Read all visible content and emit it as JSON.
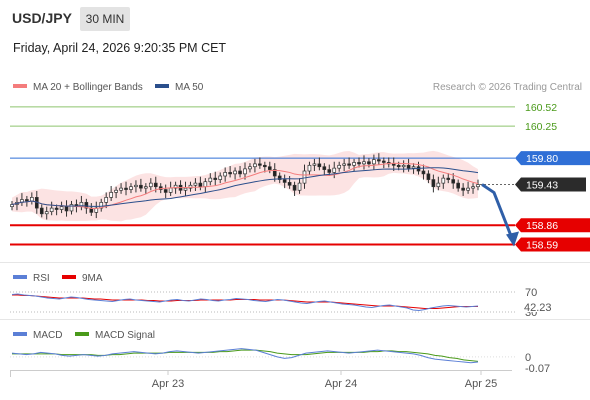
{
  "header": {
    "pair": "USD/JPY",
    "timeframe": "30 MIN",
    "datetime": "Friday, April 24, 2026 9:20:35 PM CET"
  },
  "chart_data": [
    {
      "type": "line",
      "panel": "price",
      "legend": [
        {
          "name": "MA 20 + Bollinger Bands",
          "color": "#f47c7c"
        },
        {
          "name": "MA 50",
          "color": "#2b4f8c"
        }
      ],
      "credit": "Research © 2026 Trading Central",
      "ylim": [
        158.4,
        160.7
      ],
      "x_ticks": [
        "Apr 23",
        "Apr 24",
        "Apr 25"
      ],
      "close": [
        159.15,
        159.18,
        159.22,
        159.2,
        159.25,
        159.1,
        159.02,
        159.05,
        159.1,
        159.08,
        159.12,
        159.06,
        159.15,
        159.12,
        159.18,
        159.1,
        159.04,
        159.1,
        159.18,
        159.25,
        159.32,
        159.35,
        159.38,
        159.36,
        159.4,
        159.42,
        159.38,
        159.4,
        159.45,
        159.4,
        159.36,
        159.32,
        159.38,
        159.42,
        159.35,
        159.38,
        159.42,
        159.45,
        159.4,
        159.47,
        159.52,
        159.5,
        159.55,
        159.6,
        159.58,
        159.62,
        159.58,
        159.65,
        159.68,
        159.72,
        159.7,
        159.68,
        159.64,
        159.55,
        159.5,
        159.46,
        159.42,
        159.35,
        159.45,
        159.62,
        159.7,
        159.72,
        159.68,
        159.64,
        159.6,
        159.66,
        159.7,
        159.72,
        159.7,
        159.74,
        159.72,
        159.75,
        159.72,
        159.78,
        159.76,
        159.74,
        159.72,
        159.7,
        159.68,
        159.7,
        159.66,
        159.68,
        159.62,
        159.58,
        159.5,
        159.4,
        159.45,
        159.52,
        159.5,
        159.45,
        159.38,
        159.35,
        159.38,
        159.4,
        159.43
      ],
      "ma20_label": "",
      "levels": [
        {
          "value": 160.52,
          "label": "160.52",
          "kind": "target",
          "color": "#8dc46d"
        },
        {
          "value": 160.25,
          "label": "160.25",
          "kind": "target",
          "color": "#8dc46d"
        },
        {
          "value": 159.8,
          "label": "159.80",
          "kind": "pivot",
          "color": "#2f6fd6"
        },
        {
          "value": 159.43,
          "label": "159.43",
          "kind": "last",
          "color": "#222222"
        },
        {
          "value": 158.86,
          "label": "158.86",
          "kind": "support",
          "color": "#e60000"
        },
        {
          "value": 158.59,
          "label": "158.59",
          "kind": "support",
          "color": "#e60000"
        }
      ],
      "forecast": {
        "from": 159.43,
        "to": 158.59,
        "color": "#2f5fa8"
      }
    },
    {
      "type": "line",
      "panel": "rsi",
      "legend": [
        {
          "name": "RSI",
          "color": "#5b7fd6"
        },
        {
          "name": "9MA",
          "color": "#e60000"
        }
      ],
      "ylim": [
        20,
        80
      ],
      "level_labels": [
        "70",
        "30"
      ],
      "last_label": "42.23",
      "rsi": [
        65,
        66,
        64,
        63,
        62,
        60,
        58,
        57,
        56,
        58,
        60,
        59,
        57,
        55,
        54,
        53,
        52,
        51,
        53,
        55,
        56,
        54,
        53,
        52,
        51,
        50,
        52,
        54,
        55,
        53,
        52,
        54,
        56,
        55,
        53,
        52,
        54,
        55,
        57,
        56,
        55,
        53,
        52,
        51,
        53,
        55,
        54,
        52,
        50,
        48,
        47,
        49,
        51,
        52,
        50,
        48,
        46,
        45,
        44,
        42,
        40,
        39,
        41,
        43,
        44,
        42,
        40,
        38,
        34,
        33,
        35,
        38,
        40,
        42,
        43,
        42,
        41,
        40,
        41,
        42
      ],
      "ma9": [
        64,
        64,
        63,
        63,
        62,
        61,
        60,
        59,
        58,
        58,
        58,
        58,
        58,
        57,
        56,
        56,
        55,
        54,
        54,
        54,
        54,
        54,
        54,
        53,
        53,
        52,
        52,
        52,
        53,
        53,
        53,
        53,
        54,
        54,
        54,
        54,
        54,
        54,
        55,
        55,
        55,
        55,
        54,
        54,
        54,
        54,
        54,
        53,
        52,
        51,
        50,
        50,
        50,
        50,
        50,
        49,
        48,
        47,
        46,
        45,
        44,
        43,
        42,
        42,
        42,
        42,
        41,
        40,
        39,
        38,
        37,
        37,
        37,
        38,
        39,
        40,
        41,
        41,
        41,
        41
      ]
    },
    {
      "type": "line",
      "panel": "macd",
      "legend": [
        {
          "name": "MACD",
          "color": "#5b7fd6"
        },
        {
          "name": "MACD Signal",
          "color": "#4a9a1a"
        }
      ],
      "ylim": [
        -0.15,
        0.2
      ],
      "level_labels": [
        "0"
      ],
      "last_label": "-0.07",
      "macd": [
        0.05,
        0.04,
        0.03,
        0.04,
        0.06,
        0.05,
        0.04,
        0.02,
        0.01,
        0.02,
        0.03,
        0.02,
        0.01,
        0.02,
        0.04,
        0.05,
        0.06,
        0.07,
        0.06,
        0.05,
        0.04,
        0.05,
        0.07,
        0.08,
        0.07,
        0.06,
        0.05,
        0.06,
        0.07,
        0.08,
        0.09,
        0.1,
        0.11,
        0.1,
        0.09,
        0.06,
        0.03,
        0.0,
        -0.02,
        -0.01,
        0.02,
        0.05,
        0.06,
        0.07,
        0.08,
        0.07,
        0.06,
        0.05,
        0.06,
        0.07,
        0.08,
        0.09,
        0.08,
        0.07,
        0.06,
        0.05,
        0.04,
        0.02,
        -0.01,
        -0.03,
        -0.04,
        -0.05,
        -0.06,
        -0.07,
        -0.08,
        -0.07
      ],
      "signal": [
        0.04,
        0.04,
        0.04,
        0.04,
        0.04,
        0.04,
        0.04,
        0.03,
        0.03,
        0.03,
        0.03,
        0.03,
        0.02,
        0.02,
        0.03,
        0.03,
        0.04,
        0.05,
        0.05,
        0.05,
        0.05,
        0.05,
        0.06,
        0.06,
        0.06,
        0.06,
        0.06,
        0.06,
        0.06,
        0.07,
        0.07,
        0.08,
        0.09,
        0.09,
        0.09,
        0.08,
        0.07,
        0.05,
        0.04,
        0.03,
        0.03,
        0.03,
        0.04,
        0.05,
        0.06,
        0.06,
        0.06,
        0.06,
        0.06,
        0.06,
        0.07,
        0.07,
        0.08,
        0.08,
        0.07,
        0.07,
        0.06,
        0.05,
        0.04,
        0.02,
        0.01,
        -0.01,
        -0.02,
        -0.04,
        -0.05,
        -0.06
      ]
    }
  ]
}
